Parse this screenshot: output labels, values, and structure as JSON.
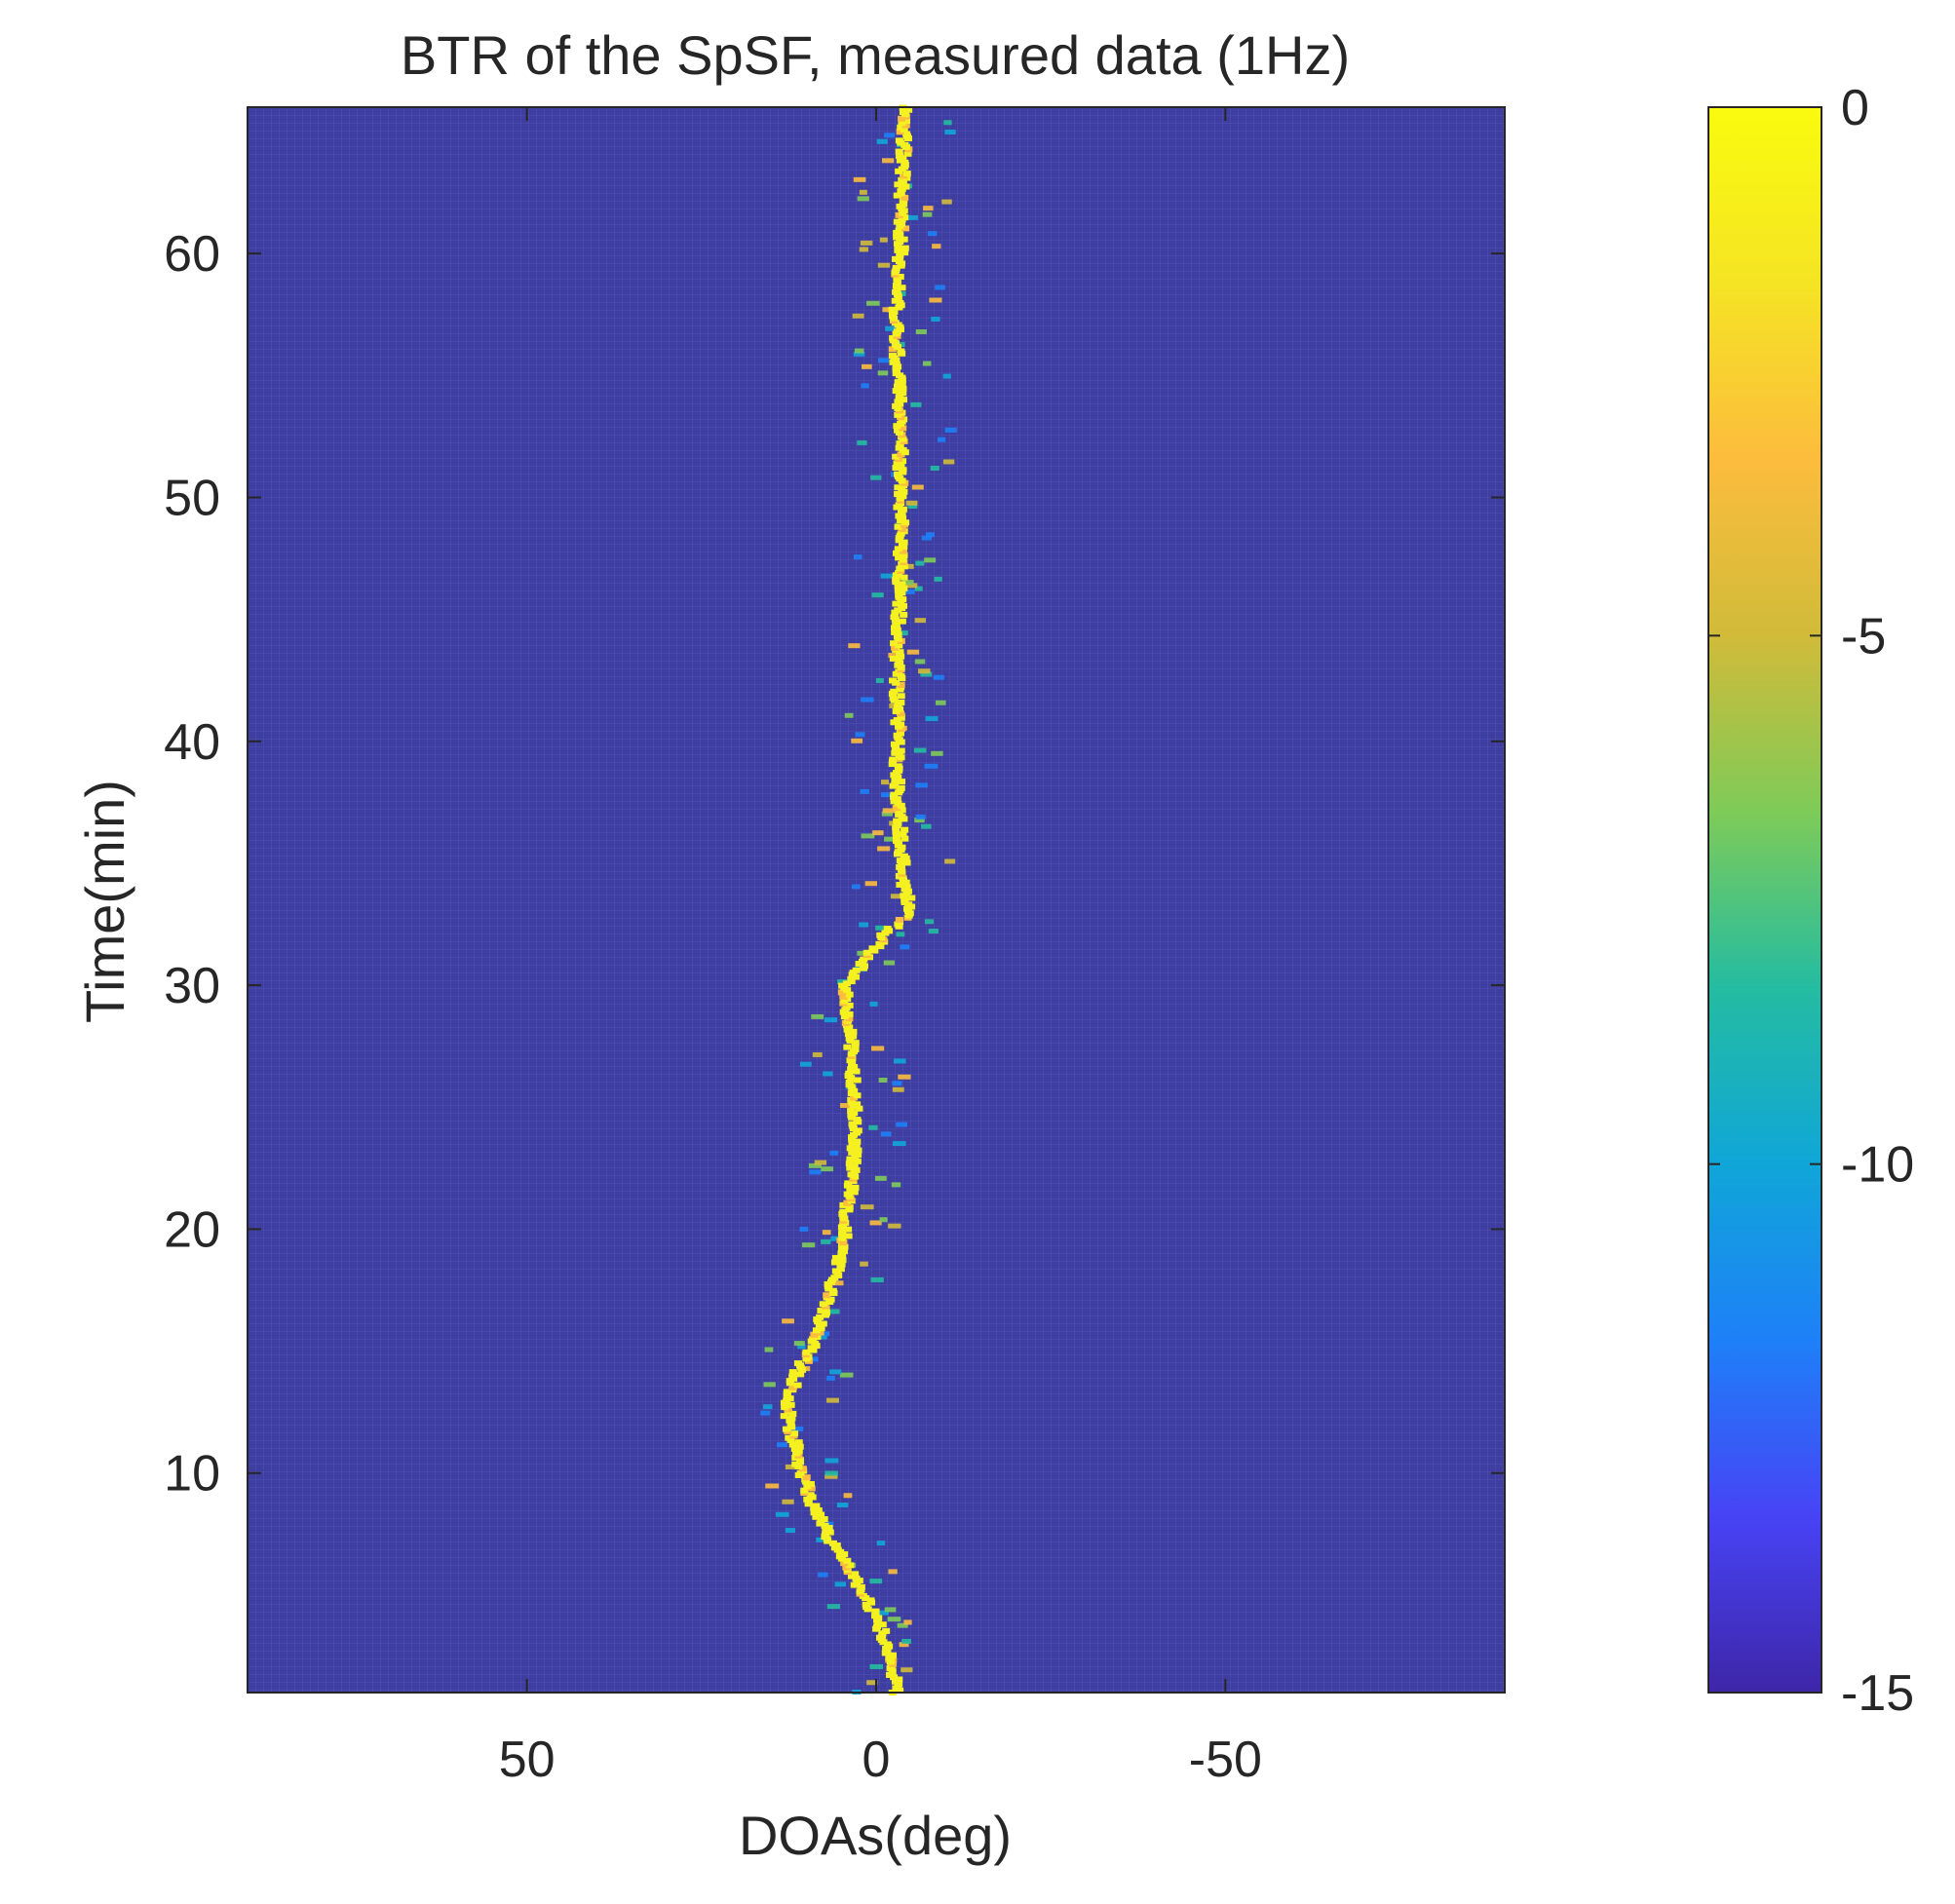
{
  "chart_data": {
    "type": "heatmap",
    "title": "BTR of the SpSF, measured data (1Hz)",
    "xlabel": "DOAs(deg)",
    "ylabel": "Time(min)",
    "xlim": [
      90,
      -90
    ],
    "ylim": [
      1,
      66
    ],
    "x_ticks": [
      50,
      0,
      -50
    ],
    "x_tick_labels": [
      "50",
      "0",
      "-50"
    ],
    "y_ticks": [
      10,
      20,
      30,
      40,
      50,
      60
    ],
    "y_tick_labels": [
      "10",
      "20",
      "30",
      "40",
      "50",
      "60"
    ],
    "colorbar": {
      "range": [
        -15,
        0
      ],
      "ticks": [
        0,
        -5,
        -10,
        -15
      ],
      "tick_labels": [
        "0",
        "-5",
        "-10",
        "-15"
      ],
      "colormap": "parula",
      "colormap_stops": [
        "#3e26a8",
        "#4743f5",
        "#1e80f8",
        "#10a6d8",
        "#24bca1",
        "#7ecb58",
        "#d1bb39",
        "#fcbc3d",
        "#f5e424",
        "#f9fb0e"
      ]
    },
    "background_value_db": -15,
    "track": {
      "description": "Bearing (DOA, deg) of dominant source vs time (min)",
      "time_min": [
        1,
        3,
        5,
        7,
        9,
        11,
        12,
        13,
        14,
        15,
        17,
        19,
        21,
        23,
        25,
        27,
        29,
        30,
        31,
        32,
        33,
        34,
        36,
        38,
        40,
        42,
        44,
        46,
        48,
        50,
        52,
        54,
        56,
        58,
        60,
        62,
        64,
        66
      ],
      "doa_deg": [
        -3,
        -1.5,
        1.5,
        6,
        9.5,
        11.5,
        12.5,
        12.5,
        11.5,
        9.5,
        7,
        5,
        4,
        3,
        3,
        3.5,
        4,
        4.5,
        1.5,
        -1,
        -5,
        -4,
        -3.5,
        -3,
        -3,
        -3,
        -3,
        -3.5,
        -3.5,
        -3.5,
        -3.5,
        -3.5,
        -3,
        -3,
        -3.5,
        -3.5,
        -4,
        -4
      ]
    },
    "colors": {
      "background": "#3e3ea0",
      "grid_line": "#4b4bb0",
      "track": "#f5f020",
      "speckle": "#1aa8d8"
    }
  }
}
